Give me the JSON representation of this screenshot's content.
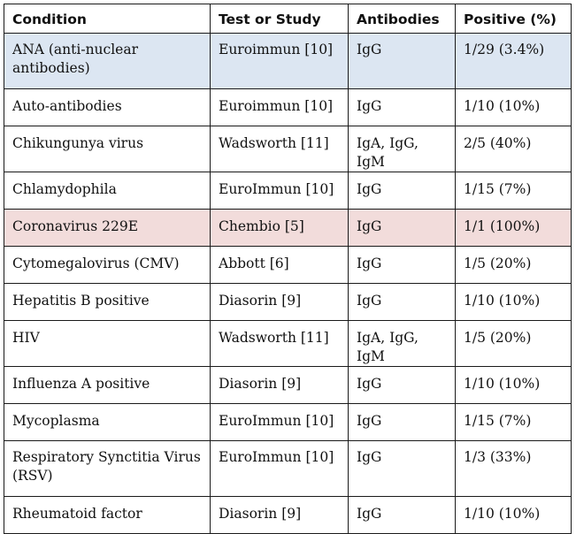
{
  "headers": [
    "Condition",
    "Test or Study",
    "Antibodies",
    "Positive (%)"
  ],
  "colors": {
    "highlight_blue": "#dce6f2",
    "highlight_pink": "#f2dcdb",
    "border": "#1a1a1a"
  },
  "rows": [
    {
      "condition": "ANA (anti-nuclear antibodies)",
      "test": "Euroimmun [10]",
      "antibodies": "IgG",
      "positive": "1/29 (3.4%)",
      "highlight": "blue"
    },
    {
      "condition": "Auto-antibodies",
      "test": "Euroimmun [10]",
      "antibodies": "IgG",
      "positive": "1/10 (10%)",
      "highlight": "none"
    },
    {
      "condition": "Chikungunya virus",
      "test": "Wadsworth [11]",
      "antibodies": "IgA, IgG, IgM",
      "positive": "2/5 (40%)",
      "highlight": "none"
    },
    {
      "condition": "Chlamydophila",
      "test": "EuroImmun [10]",
      "antibodies": "IgG",
      "positive": "1/15 (7%)",
      "highlight": "none"
    },
    {
      "condition": "Coronavirus 229E",
      "test": "Chembio [5]",
      "antibodies": "IgG",
      "positive": "1/1 (100%)",
      "highlight": "pink"
    },
    {
      "condition": "Cytomegalovirus (CMV)",
      "test": "Abbott [6]",
      "antibodies": "IgG",
      "positive": "1/5 (20%)",
      "highlight": "none"
    },
    {
      "condition": "Hepatitis B positive",
      "test": "Diasorin [9]",
      "antibodies": "IgG",
      "positive": "1/10 (10%)",
      "highlight": "none"
    },
    {
      "condition": "HIV",
      "test": "Wadsworth [11]",
      "antibodies": "IgA, IgG, IgM",
      "positive": "1/5 (20%)",
      "highlight": "none"
    },
    {
      "condition": "Influenza A positive",
      "test": "Diasorin [9]",
      "antibodies": "IgG",
      "positive": "1/10 (10%)",
      "highlight": "none"
    },
    {
      "condition": "Mycoplasma",
      "test": "EuroImmun [10]",
      "antibodies": "IgG",
      "positive": "1/15 (7%)",
      "highlight": "none"
    },
    {
      "condition": "Respiratory Synctitia Virus (RSV)",
      "test": "EuroImmun [10]",
      "antibodies": "IgG",
      "positive": "1/3 (33%)",
      "highlight": "none"
    },
    {
      "condition": "Rheumatoid factor",
      "test": "Diasorin [9]",
      "antibodies": "IgG",
      "positive": "1/10 (10%)",
      "highlight": "none"
    }
  ]
}
